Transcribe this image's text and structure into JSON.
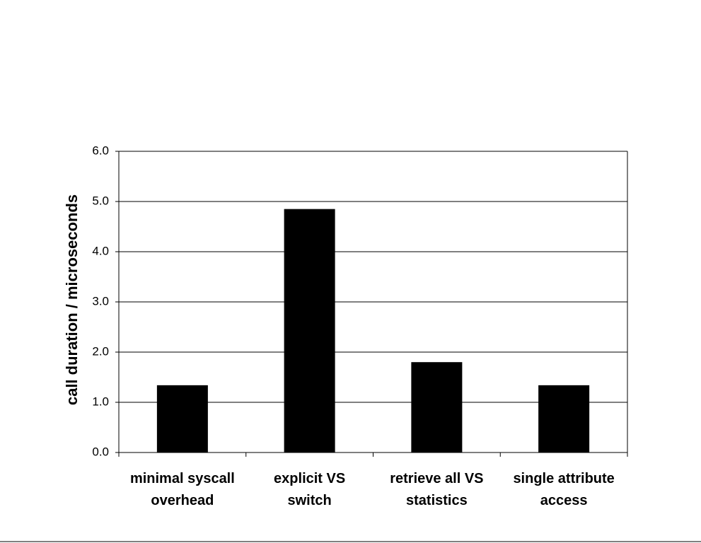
{
  "chart_data": {
    "type": "bar",
    "y_label": "call duration / microseconds",
    "categories": [
      "minimal syscall\noverhead",
      "explicit VS\nswitch",
      "retrieve all VS\nstatistics",
      "single attribute\naccess"
    ],
    "values": [
      1.34,
      4.85,
      1.8,
      1.34
    ],
    "color": "#000000",
    "ylim": [
      0,
      6
    ],
    "yticks": [
      {
        "value": 0,
        "label": "0.0"
      },
      {
        "value": 1,
        "label": "1.0"
      },
      {
        "value": 2,
        "label": "2.0"
      },
      {
        "value": 3,
        "label": "3.0"
      },
      {
        "value": 4,
        "label": "4.0"
      },
      {
        "value": 5,
        "label": "5.0"
      },
      {
        "value": 6,
        "label": "6.0"
      }
    ],
    "grid": true
  }
}
